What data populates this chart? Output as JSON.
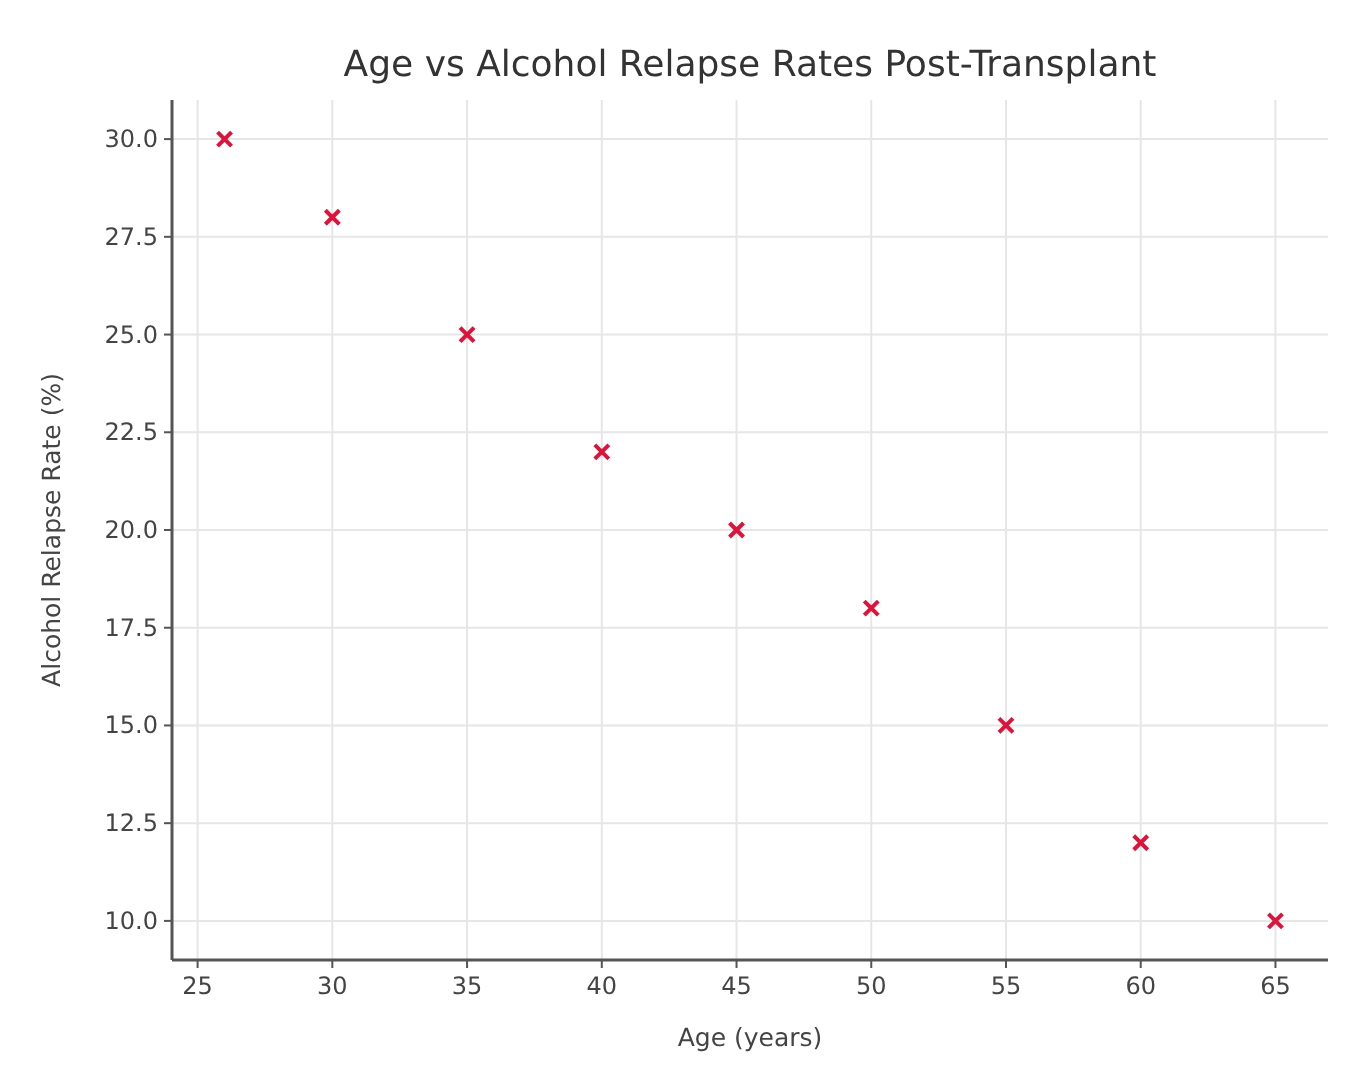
{
  "chart_data": {
    "type": "scatter",
    "title": "Age vs Alcohol Relapse Rates Post-Transplant",
    "xlabel": "Age (years)",
    "ylabel": "Alcohol Relapse Rate (%)",
    "x": [
      26,
      30,
      35,
      40,
      45,
      50,
      55,
      60,
      65
    ],
    "series": [
      {
        "color": "#dc143c",
        "values": [
          30,
          28,
          25,
          22,
          20,
          18,
          15,
          12,
          10
        ]
      }
    ],
    "xlim": [
      24.05,
      66.95
    ],
    "ylim": [
      9,
      31
    ],
    "xticks": [
      25,
      30,
      35,
      40,
      45,
      50,
      55,
      60,
      65
    ],
    "yticks": [
      {
        "value": 10,
        "label": "10.0"
      },
      {
        "value": 12.5,
        "label": "12.5"
      },
      {
        "value": 15,
        "label": "15.0"
      },
      {
        "value": 17.5,
        "label": "17.5"
      },
      {
        "value": 20,
        "label": "20.0"
      },
      {
        "value": 22.5,
        "label": "22.5"
      },
      {
        "value": 25,
        "label": "25.0"
      },
      {
        "value": 27.5,
        "label": "27.5"
      },
      {
        "value": 30,
        "label": "30.0"
      }
    ],
    "grid": true,
    "marker": "cross"
  }
}
